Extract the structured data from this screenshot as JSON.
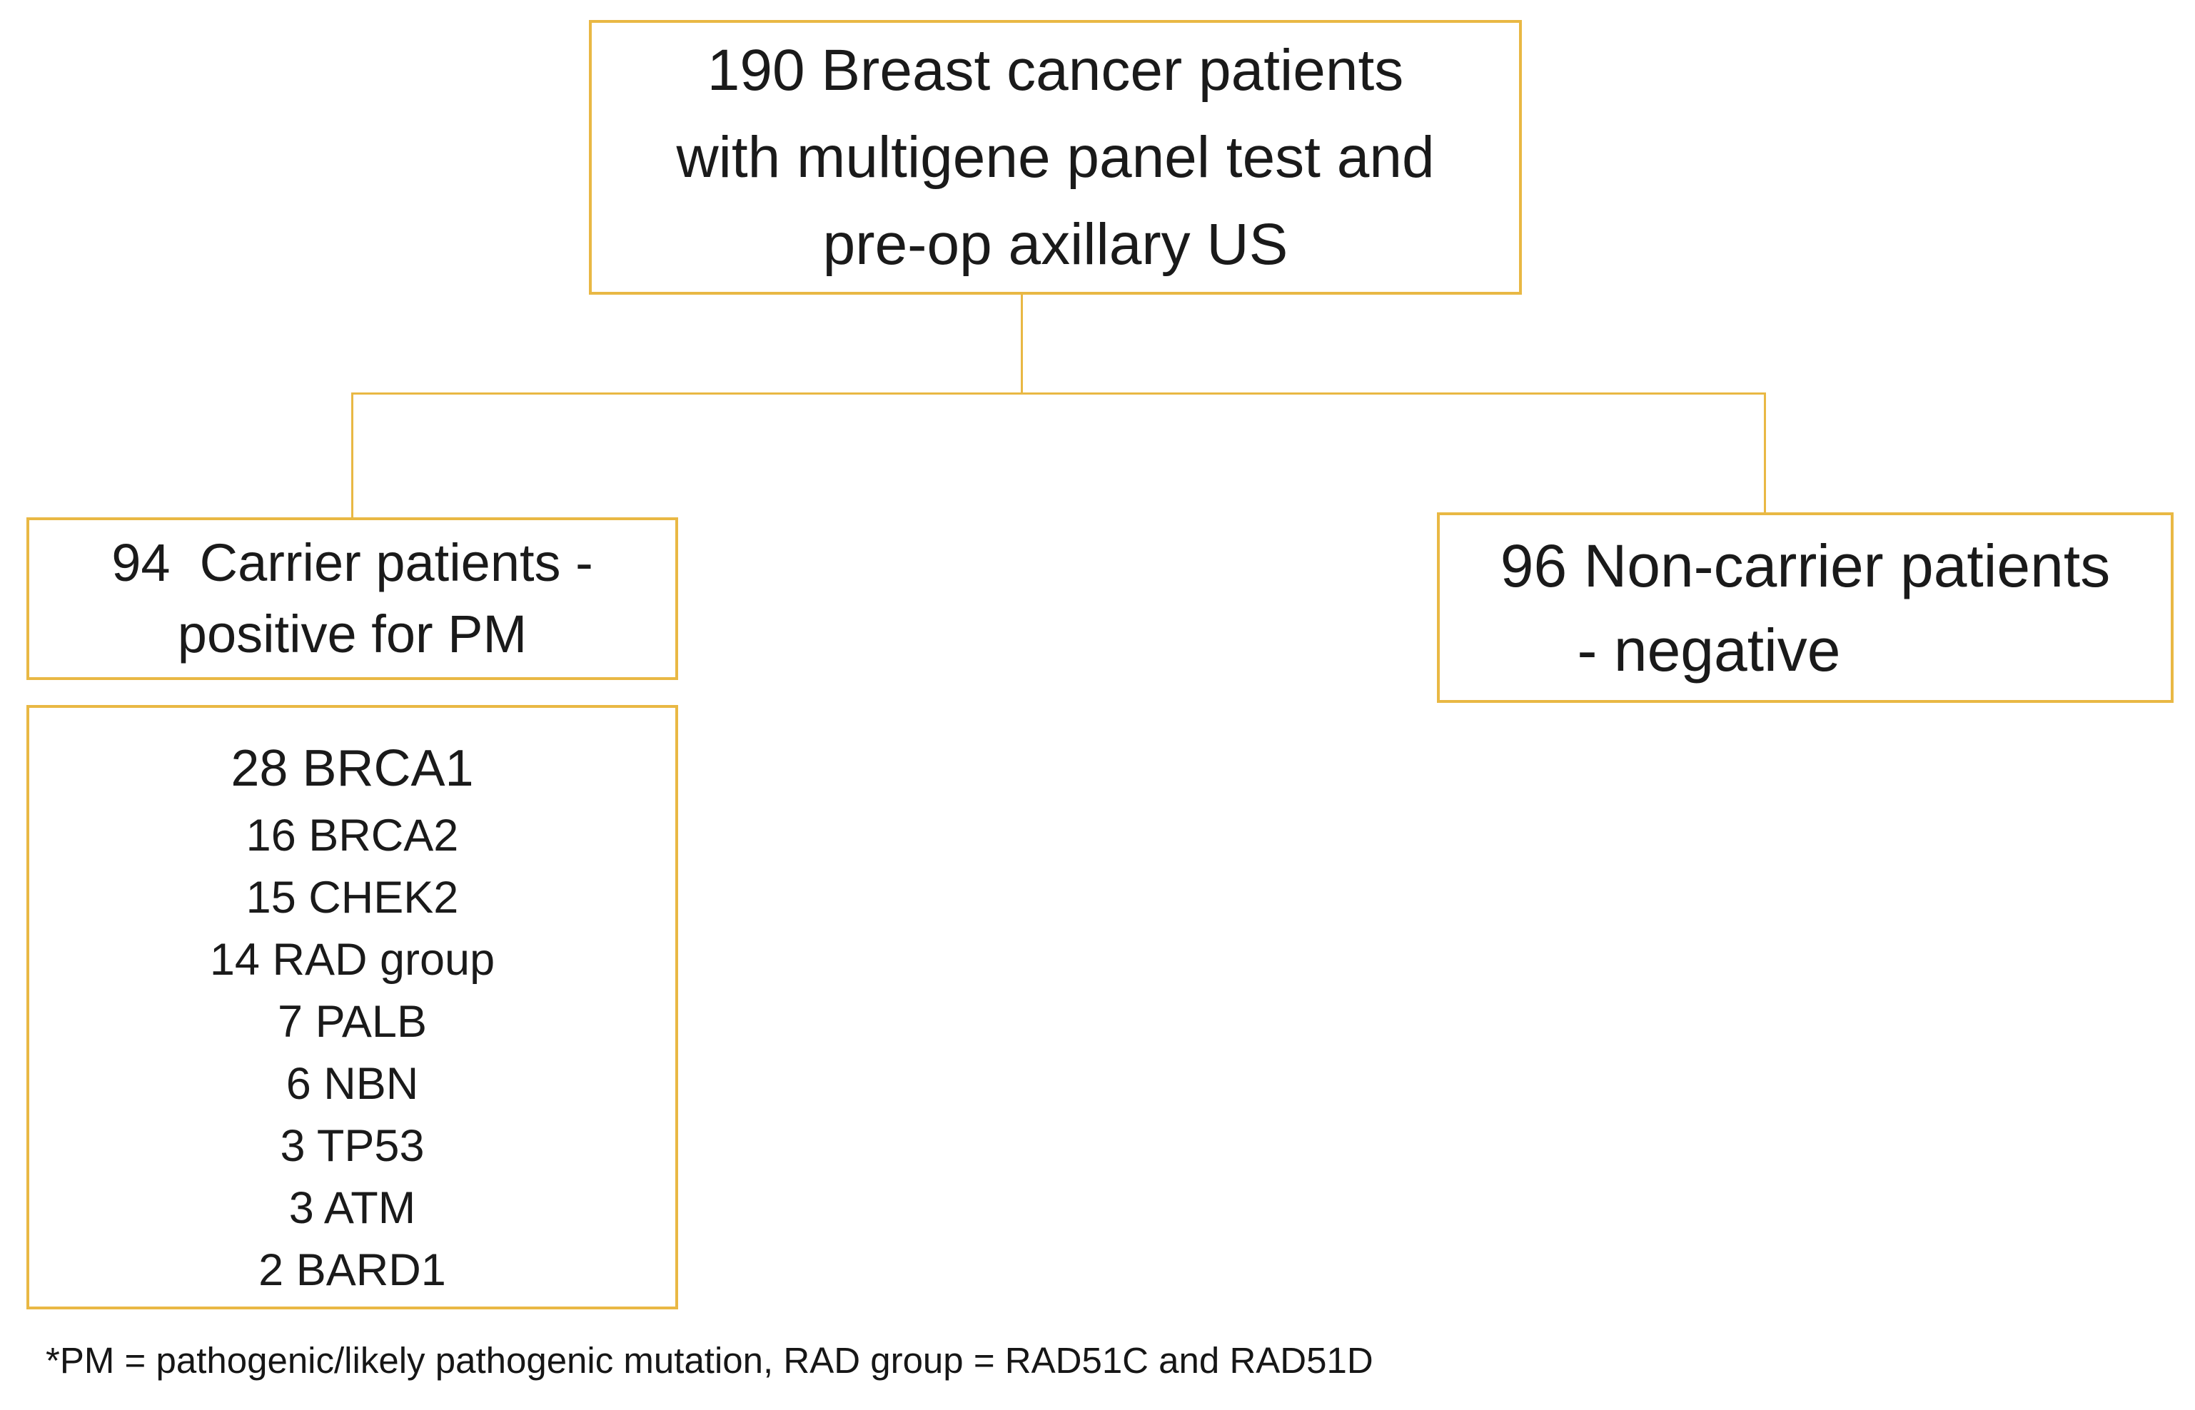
{
  "diagram": {
    "title_box": {
      "lines": [
        "190 Breast cancer patients",
        "with multigene panel test and",
        "pre-op axillary US"
      ]
    },
    "carrier_box": {
      "lines": [
        "94  Carrier patients -",
        "positive for PM"
      ]
    },
    "non_carrier_box": {
      "lines": [
        "96 Non-carrier patients",
        "- negative"
      ]
    },
    "gene_box": {
      "items": [
        {
          "count": "28",
          "gene": "BRCA1"
        },
        {
          "count": "16",
          "gene": "BRCA2"
        },
        {
          "count": "15",
          "gene": "CHEK2"
        },
        {
          "count": "14",
          "gene": "RAD group"
        },
        {
          "count": "7",
          "gene": "PALB"
        },
        {
          "count": "6",
          "gene": "NBN"
        },
        {
          "count": "3",
          "gene": "TP53"
        },
        {
          "count": "3",
          "gene": "ATM"
        },
        {
          "count": "2",
          "gene": "BARD1"
        }
      ]
    },
    "footnote": "*PM = pathogenic/likely pathogenic mutation, RAD group = RAD51C and RAD51D",
    "colors": {
      "border": "#E9B844",
      "text": "#1A1A1A",
      "background": "#FFFFFF"
    }
  }
}
